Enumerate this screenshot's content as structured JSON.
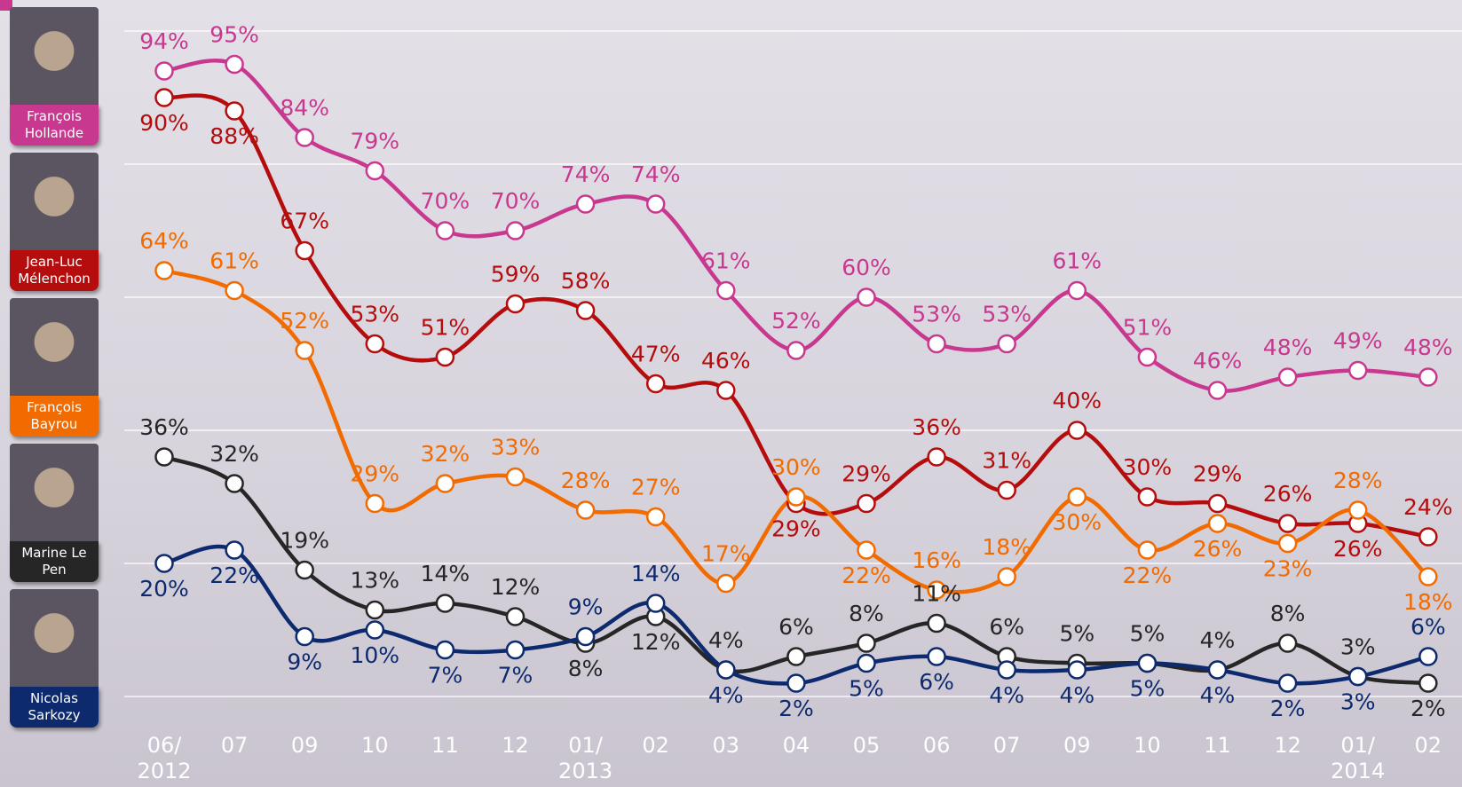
{
  "chart_data": {
    "type": "line",
    "categories": [
      "06/ 2012",
      "07",
      "09",
      "10",
      "11",
      "12",
      "01/ 2013",
      "02",
      "03",
      "04",
      "05",
      "06",
      "07",
      "09",
      "10",
      "11",
      "12",
      "01/ 2014",
      "02"
    ],
    "ylim": [
      0,
      100
    ],
    "yticks": [
      0,
      20,
      40,
      60,
      80,
      100
    ],
    "grid": true,
    "series": [
      {
        "name": "François Hollande",
        "color": "#c8388f",
        "values": [
          94,
          95,
          84,
          79,
          70,
          70,
          74,
          74,
          61,
          52,
          60,
          53,
          53,
          61,
          51,
          46,
          48,
          49,
          48
        ],
        "value_labels": [
          "94%",
          "95%",
          "84%",
          "79%",
          "70%",
          "70%",
          "74%",
          "74%",
          "61%",
          "52%",
          "60%",
          "53%",
          "53%",
          "61%",
          "51%",
          "46%",
          "48%",
          "49%",
          "48%"
        ]
      },
      {
        "name": "Jean-Luc Mélenchon",
        "color": "#b50d0d",
        "values": [
          90,
          88,
          67,
          53,
          51,
          59,
          58,
          47,
          46,
          29,
          29,
          36,
          31,
          40,
          30,
          29,
          26,
          26,
          24
        ],
        "value_labels": [
          "90%",
          "88%",
          "67%",
          "53%",
          "51%",
          "59%",
          "58%",
          "47%",
          "46%",
          "29%",
          "29%",
          "36%",
          "31%",
          "40%",
          "30%",
          "29%",
          "26%",
          "26%",
          "24%"
        ]
      },
      {
        "name": "François Bayrou",
        "color": "#f26b00",
        "values": [
          64,
          61,
          52,
          29,
          32,
          33,
          28,
          27,
          17,
          30,
          22,
          16,
          18,
          30,
          22,
          26,
          23,
          28,
          18
        ],
        "value_labels": [
          "64%",
          "61%",
          "52%",
          "29%",
          "32%",
          "33%",
          "28%",
          "27%",
          "17%",
          "30%",
          "22%",
          "16%",
          "18%",
          "30%",
          "22%",
          "26%",
          "23%",
          "28%",
          "18%"
        ]
      },
      {
        "name": "Marine Le Pen",
        "color": "#262626",
        "values": [
          36,
          32,
          19,
          13,
          14,
          12,
          8,
          12,
          4,
          6,
          8,
          11,
          6,
          5,
          5,
          4,
          8,
          3,
          2
        ],
        "value_labels": [
          "36%",
          "32%",
          "19%",
          "13%",
          "14%",
          "12%",
          "8%",
          "12%",
          "4%",
          "6%",
          "8%",
          "11%",
          "6%",
          "5%",
          "5%",
          "4%",
          "8%",
          "3%",
          "2%"
        ]
      },
      {
        "name": "Nicolas Sarkozy",
        "color": "#0d2a6e",
        "values": [
          20,
          22,
          9,
          10,
          7,
          7,
          9,
          14,
          4,
          2,
          5,
          6,
          4,
          4,
          5,
          4,
          2,
          3,
          6
        ],
        "value_labels": [
          "20%",
          "22%",
          "9%",
          "10%",
          "7%",
          "7%",
          "9%",
          "14%",
          "4%",
          "2%",
          "5%",
          "6%",
          "4%",
          "4%",
          "5%",
          "4%",
          "2%",
          "3%",
          "6%"
        ]
      }
    ]
  }
}
